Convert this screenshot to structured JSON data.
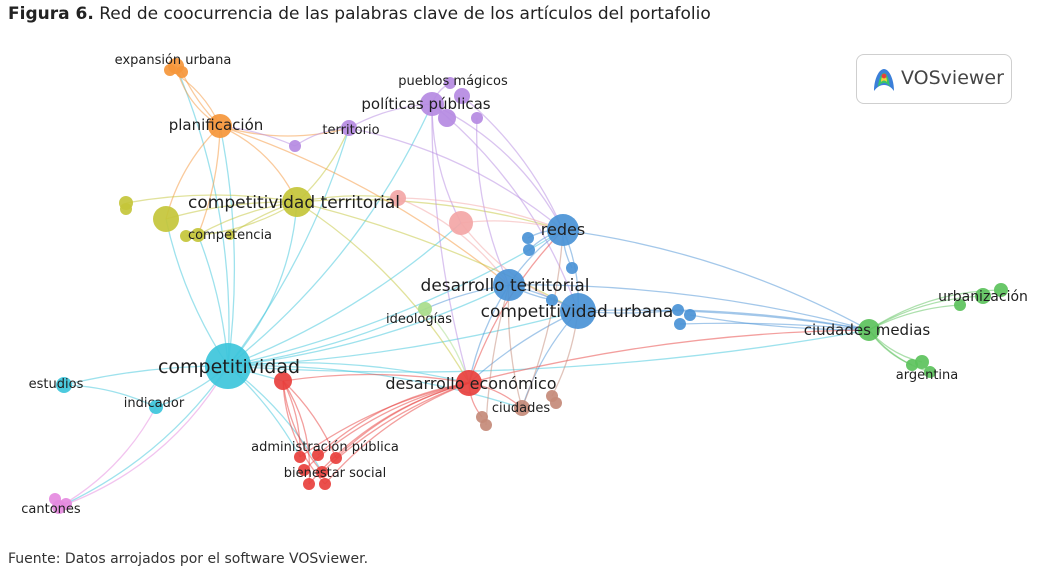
{
  "figure": {
    "title_prefix": "Figura 6.",
    "title_text": "Red de coocurrencia de las palabras clave de los artículos del portafolio",
    "source": "Fuente: Datos arrojados por el software VOSviewer.",
    "logo_text": "VOSviewer"
  },
  "colors": {
    "orange": "#f5963a",
    "purple": "#b58ae2",
    "yellow": "#c4c53a",
    "pink": "#f3a6a6",
    "blue": "#4a92d6",
    "cyan": "#3dc6db",
    "red": "#e8403d",
    "green": "#5cc25c",
    "lightgreen": "#a8dc8a",
    "brown": "#c48a78",
    "magenta": "#e58ae0"
  },
  "labels": [
    {
      "id": "expansion",
      "text": "expansión urbana",
      "cluster": "orange"
    },
    {
      "id": "planificacion",
      "text": "planificación",
      "cluster": "orange"
    },
    {
      "id": "pueblos",
      "text": "pueblos mágicos",
      "cluster": "purple"
    },
    {
      "id": "politicas",
      "text": "políticas públicas",
      "cluster": "purple"
    },
    {
      "id": "territorio",
      "text": "territorio",
      "cluster": "purple"
    },
    {
      "id": "comp_terr",
      "text": "competitividad territorial",
      "cluster": "yellow"
    },
    {
      "id": "competencia",
      "text": "competencia",
      "cluster": "yellow"
    },
    {
      "id": "redes",
      "text": "redes",
      "cluster": "blue"
    },
    {
      "id": "des_terr",
      "text": "desarrollo territorial",
      "cluster": "blue"
    },
    {
      "id": "comp_urb",
      "text": "competitividad urbana",
      "cluster": "blue"
    },
    {
      "id": "ideologias",
      "text": "ideologías",
      "cluster": "lightgreen"
    },
    {
      "id": "competitividad",
      "text": "competitividad",
      "cluster": "cyan"
    },
    {
      "id": "estudios",
      "text": "estudios",
      "cluster": "cyan"
    },
    {
      "id": "indicador",
      "text": "indicador",
      "cluster": "cyan"
    },
    {
      "id": "des_econ",
      "text": "desarrollo económico",
      "cluster": "red"
    },
    {
      "id": "ciudades",
      "text": "ciudades",
      "cluster": "brown"
    },
    {
      "id": "admin",
      "text": "administración pública",
      "cluster": "red"
    },
    {
      "id": "bienestar",
      "text": "bienestar social",
      "cluster": "red"
    },
    {
      "id": "ciud_medias",
      "text": "ciudades medias",
      "cluster": "green"
    },
    {
      "id": "urbanizacion",
      "text": "urbanización",
      "cluster": "green"
    },
    {
      "id": "argentina",
      "text": "argentina",
      "cluster": "green"
    },
    {
      "id": "cantones",
      "text": "cantones",
      "cluster": "magenta"
    }
  ]
}
